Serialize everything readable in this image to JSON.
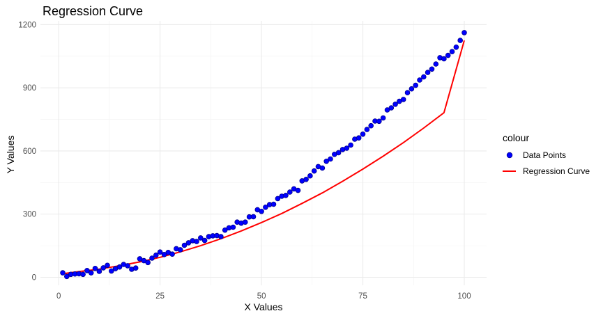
{
  "chart_data": {
    "type": "scatter",
    "title": "Regression Curve",
    "xlabel": "X Values",
    "ylabel": "Y Values",
    "xlim": [
      -4.5,
      105.5
    ],
    "ylim": [
      -38,
      1218
    ],
    "x_ticks": [
      0,
      25,
      50,
      75,
      100
    ],
    "y_ticks": [
      0,
      300,
      600,
      900,
      1200
    ],
    "grid": true,
    "legend": {
      "title": "colour",
      "position": "right",
      "entries": [
        {
          "label": "Data Points",
          "kind": "point",
          "color": "#0000ff"
        },
        {
          "label": "Regression Curve",
          "kind": "line",
          "color": "#ff0000"
        }
      ]
    },
    "series": [
      {
        "name": "Data Points",
        "kind": "points",
        "color": "#0000ff",
        "outline": "#00008b",
        "points": [
          [
            1,
            21
          ],
          [
            2,
            4
          ],
          [
            3,
            14
          ],
          [
            4,
            16
          ],
          [
            5,
            17
          ],
          [
            6,
            14
          ],
          [
            7,
            32
          ],
          [
            8,
            21
          ],
          [
            9,
            42
          ],
          [
            10,
            28
          ],
          [
            11,
            45
          ],
          [
            12,
            57
          ],
          [
            13,
            30
          ],
          [
            14,
            41
          ],
          [
            15,
            49
          ],
          [
            16,
            61
          ],
          [
            17,
            55
          ],
          [
            18,
            38
          ],
          [
            19,
            44
          ],
          [
            20,
            88
          ],
          [
            21,
            79
          ],
          [
            22,
            70
          ],
          [
            23,
            91
          ],
          [
            24,
            105
          ],
          [
            25,
            120
          ],
          [
            26,
            108
          ],
          [
            27,
            118
          ],
          [
            28,
            110
          ],
          [
            29,
            136
          ],
          [
            30,
            131
          ],
          [
            31,
            152
          ],
          [
            32,
            164
          ],
          [
            33,
            174
          ],
          [
            34,
            170
          ],
          [
            35,
            187
          ],
          [
            36,
            175
          ],
          [
            37,
            193
          ],
          [
            38,
            197
          ],
          [
            39,
            198
          ],
          [
            40,
            193
          ],
          [
            41,
            224
          ],
          [
            42,
            235
          ],
          [
            43,
            238
          ],
          [
            44,
            262
          ],
          [
            45,
            257
          ],
          [
            46,
            262
          ],
          [
            47,
            287
          ],
          [
            48,
            288
          ],
          [
            49,
            321
          ],
          [
            50,
            313
          ],
          [
            51,
            333
          ],
          [
            52,
            345
          ],
          [
            53,
            347
          ],
          [
            54,
            374
          ],
          [
            55,
            385
          ],
          [
            56,
            389
          ],
          [
            57,
            405
          ],
          [
            58,
            420
          ],
          [
            59,
            413
          ],
          [
            60,
            458
          ],
          [
            61,
            465
          ],
          [
            62,
            482
          ],
          [
            63,
            505
          ],
          [
            64,
            526
          ],
          [
            65,
            519
          ],
          [
            66,
            551
          ],
          [
            67,
            562
          ],
          [
            68,
            584
          ],
          [
            69,
            592
          ],
          [
            70,
            607
          ],
          [
            71,
            613
          ],
          [
            72,
            628
          ],
          [
            73,
            656
          ],
          [
            74,
            662
          ],
          [
            75,
            680
          ],
          [
            76,
            702
          ],
          [
            77,
            720
          ],
          [
            78,
            742
          ],
          [
            79,
            741
          ],
          [
            80,
            757
          ],
          [
            81,
            795
          ],
          [
            82,
            805
          ],
          [
            83,
            822
          ],
          [
            84,
            836
          ],
          [
            85,
            845
          ],
          [
            86,
            877
          ],
          [
            87,
            895
          ],
          [
            88,
            912
          ],
          [
            89,
            937
          ],
          [
            90,
            952
          ],
          [
            91,
            973
          ],
          [
            92,
            989
          ],
          [
            93,
            1013
          ],
          [
            94,
            1043
          ],
          [
            95,
            1038
          ],
          [
            96,
            1054
          ],
          [
            97,
            1072
          ],
          [
            98,
            1093
          ],
          [
            99,
            1125
          ],
          [
            100,
            1162
          ]
        ]
      },
      {
        "name": "Regression Curve",
        "kind": "line",
        "color": "#ff0000",
        "points": [
          [
            1,
            17
          ],
          [
            5,
            27
          ],
          [
            10,
            39
          ],
          [
            15,
            55
          ],
          [
            20,
            73
          ],
          [
            25,
            95
          ],
          [
            30,
            121
          ],
          [
            35,
            150
          ],
          [
            40,
            183
          ],
          [
            45,
            220
          ],
          [
            50,
            260
          ],
          [
            55,
            303
          ],
          [
            60,
            351
          ],
          [
            65,
            401
          ],
          [
            70,
            456
          ],
          [
            75,
            514
          ],
          [
            80,
            575
          ],
          [
            85,
            640
          ],
          [
            90,
            709
          ],
          [
            95,
            782
          ],
          [
            100,
            1125
          ]
        ]
      }
    ]
  }
}
